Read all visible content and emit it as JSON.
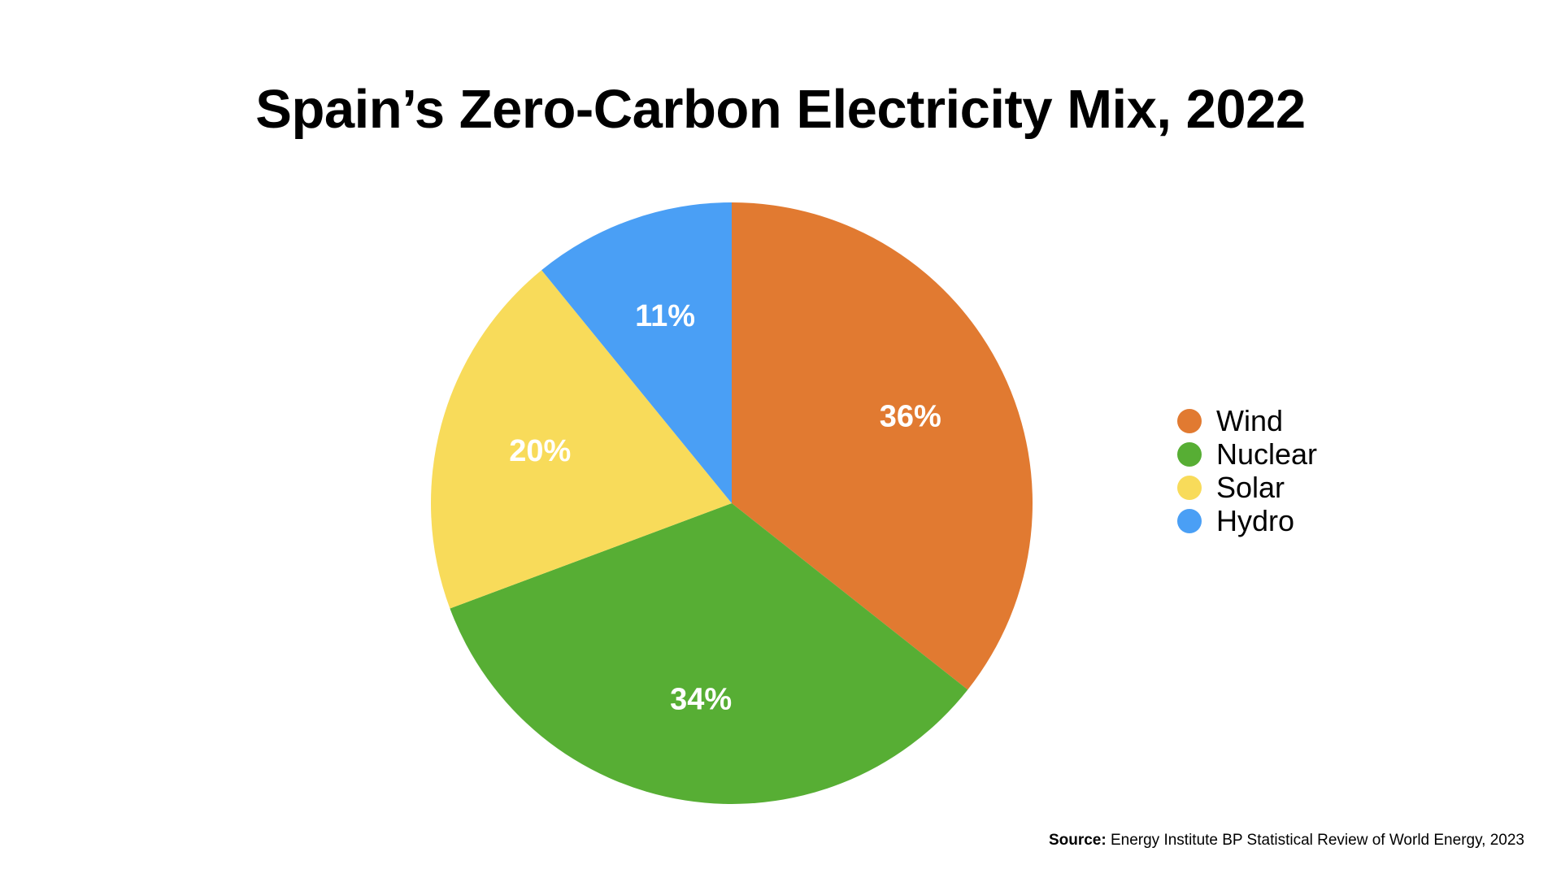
{
  "chart_data": {
    "type": "pie",
    "title": "Spain’s Zero-Carbon Electricity Mix, 2022",
    "categories": [
      "Wind",
      "Nuclear",
      "Solar",
      "Hydro"
    ],
    "values": [
      36,
      34,
      20,
      11
    ],
    "value_labels": [
      "36%",
      "34%",
      "20%",
      "11%"
    ],
    "colors": [
      "#E17A31",
      "#57AE34",
      "#F8DB5A",
      "#4A9FF5"
    ],
    "start_angle_deg": 0,
    "direction": "clockwise",
    "legend": {
      "position": "right",
      "entries": [
        "Wind",
        "Nuclear",
        "Solar",
        "Hydro"
      ]
    }
  },
  "source": {
    "label": "Source:",
    "text": "Energy Institute BP Statistical Review of World Energy, 2023"
  }
}
